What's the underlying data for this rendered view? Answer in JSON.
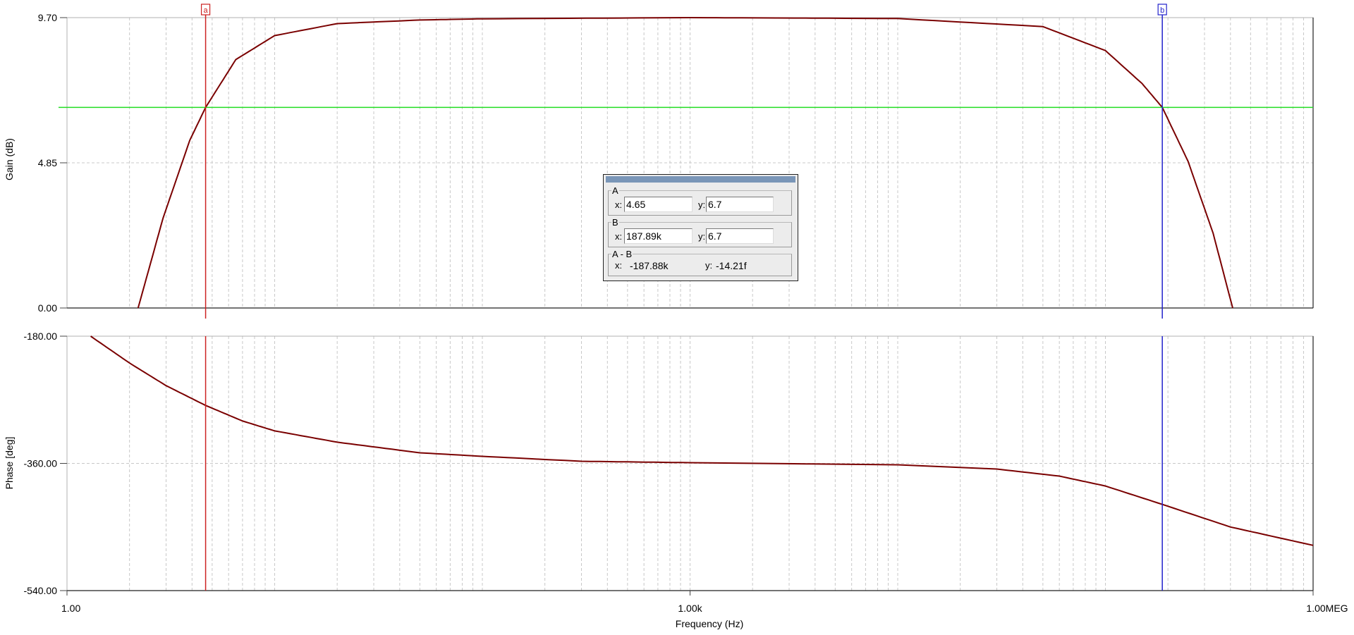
{
  "chart_data": [
    {
      "type": "line",
      "panel": "gain",
      "ylabel": "Gain (dB)",
      "ylim": [
        0,
        9.7
      ],
      "yticks": [
        "9.70",
        "4.85",
        "0.00"
      ],
      "x_scale": "log",
      "xlim": [
        1,
        1000000
      ],
      "grid": true,
      "series": [
        {
          "color": "#7a0000",
          "x": [
            2.2,
            2.9,
            3.9,
            4.65,
            6.5,
            10,
            20,
            50,
            100,
            1000,
            10000,
            50000,
            100000,
            150000,
            187890,
            250000,
            330000,
            410000
          ],
          "y": [
            0,
            3.0,
            5.6,
            6.7,
            8.3,
            9.1,
            9.5,
            9.62,
            9.66,
            9.7,
            9.67,
            9.4,
            8.6,
            7.5,
            6.7,
            4.9,
            2.5,
            0
          ]
        }
      ],
      "reference_line": {
        "y": 6.7,
        "color": "#22dd22"
      }
    },
    {
      "type": "line",
      "panel": "phase",
      "ylabel": "Phase [deg]",
      "xlabel": "Frequency (Hz)",
      "ylim": [
        -540,
        -180
      ],
      "yticks": [
        "-180.00",
        "-360.00",
        "-540.00"
      ],
      "x_scale": "log",
      "xlim": [
        1,
        1000000
      ],
      "xticks": [
        "1.00",
        "1.00k",
        "1.00MEG"
      ],
      "grid": true,
      "series": [
        {
          "color": "#7a0000",
          "x": [
            1.3,
            2,
            3,
            4.65,
            7,
            10,
            20,
            50,
            100,
            300,
            1000,
            10000,
            30000,
            60000,
            100000,
            187890,
            400000,
            1000000
          ],
          "y": [
            -180,
            -218,
            -250,
            -278,
            -300,
            -314,
            -330,
            -345,
            -350,
            -357,
            -359,
            -362,
            -368,
            -378,
            -392,
            -418,
            -450,
            -476
          ]
        }
      ]
    }
  ],
  "cursors": {
    "a": {
      "tag": "a",
      "x": 4.65,
      "color": "#cc2222"
    },
    "b": {
      "tag": "b",
      "x": 187890,
      "color": "#2222cc"
    }
  },
  "cursor_panel": {
    "a": {
      "label": "A",
      "x": "4.65",
      "y": "6.7"
    },
    "b": {
      "label": "B",
      "x": "187.89k",
      "y": "6.7"
    },
    "diff": {
      "label": "A - B",
      "x": "-187.88k",
      "y": "-14.21f"
    },
    "x_prefix": "x:",
    "y_prefix": "y:",
    "diff_y_prefix": "y: "
  },
  "colors": {
    "trace": "#7a0000",
    "grid": "#c8c8c8",
    "reference": "#22dd22"
  }
}
